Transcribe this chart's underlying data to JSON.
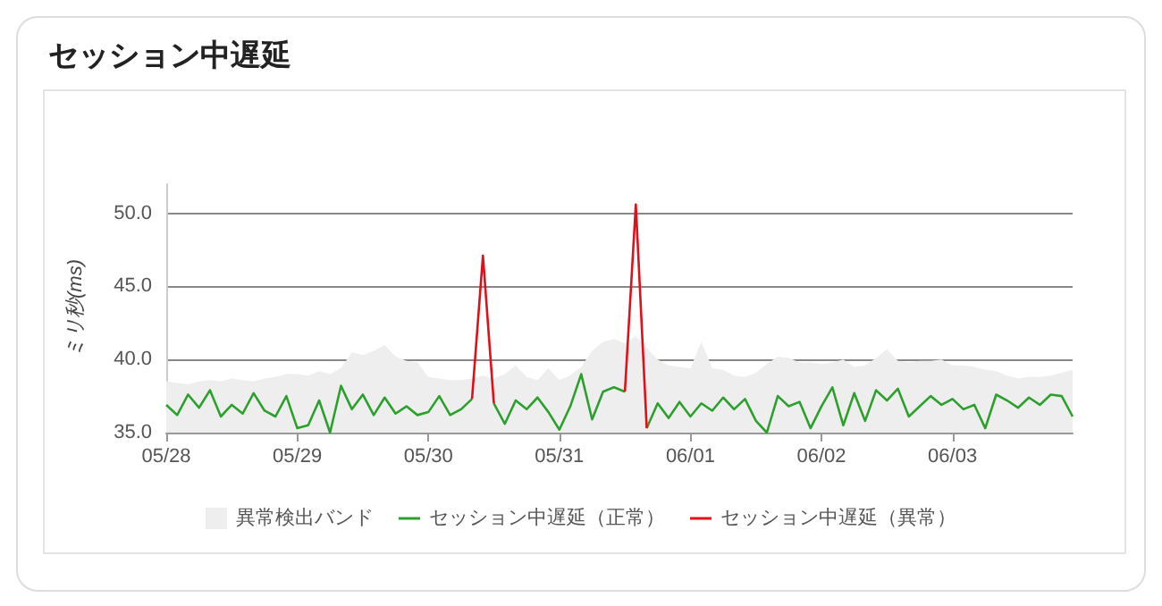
{
  "chart_data": {
    "type": "line",
    "title": "セッション中遅延",
    "ylabel": "ミリ秒(ms)",
    "x": [
      "--05-28T00:00",
      "--05-28T02:00",
      "--05-28T04:00",
      "--05-28T06:00",
      "--05-28T08:00",
      "--05-28T10:00",
      "--05-28T12:00",
      "--05-28T14:00",
      "--05-28T16:00",
      "--05-28T18:00",
      "--05-28T20:00",
      "--05-28T22:00",
      "--05-29T00:00",
      "--05-29T02:00",
      "--05-29T04:00",
      "--05-29T06:00",
      "--05-29T08:00",
      "--05-29T10:00",
      "--05-29T12:00",
      "--05-29T14:00",
      "--05-29T16:00",
      "--05-29T18:00",
      "--05-29T20:00",
      "--05-29T22:00",
      "--05-30T00:00",
      "--05-30T02:00",
      "--05-30T04:00",
      "--05-30T06:00",
      "--05-30T08:00",
      "--05-30T10:00",
      "--05-30T12:00",
      "--05-30T14:00",
      "--05-30T16:00",
      "--05-30T18:00",
      "--05-30T20:00",
      "--05-30T22:00",
      "--05-31T00:00",
      "--05-31T02:00",
      "--05-31T04:00",
      "--05-31T06:00",
      "--05-31T08:00",
      "--05-31T10:00",
      "--05-31T12:00",
      "--05-31T14:00",
      "--05-31T16:00",
      "--05-31T18:00",
      "--05-31T20:00",
      "--05-31T22:00",
      "--06-01T00:00",
      "--06-01T02:00",
      "--06-01T04:00",
      "--06-01T06:00",
      "--06-01T08:00",
      "--06-01T10:00",
      "--06-01T12:00",
      "--06-01T14:00",
      "--06-01T16:00",
      "--06-01T18:00",
      "--06-01T20:00",
      "--06-01T22:00",
      "--06-02T00:00",
      "--06-02T02:00",
      "--06-02T04:00",
      "--06-02T06:00",
      "--06-02T08:00",
      "--06-02T10:00",
      "--06-02T12:00",
      "--06-02T14:00",
      "--06-02T16:00",
      "--06-02T18:00",
      "--06-02T20:00",
      "--06-02T22:00",
      "--06-03T00:00",
      "--06-03T02:00",
      "--06-03T04:00",
      "--06-03T06:00",
      "--06-03T08:00",
      "--06-03T10:00",
      "--06-03T12:00",
      "--06-03T14:00",
      "--06-03T16:00",
      "--06-03T18:00",
      "--06-03T20:00",
      "--06-03T22:00"
    ],
    "xlim": [
      "--05-28T00:00",
      "--06-03T22:00"
    ],
    "xticks": [
      {
        "value": "--05-28",
        "label": "05/28"
      },
      {
        "value": "--05-29",
        "label": "05/29"
      },
      {
        "value": "--05-30",
        "label": "05/30"
      },
      {
        "value": "--05-31",
        "label": "05/31"
      },
      {
        "value": "--06-01",
        "label": "06/01"
      },
      {
        "value": "--06-02",
        "label": "06/02"
      },
      {
        "value": "--06-03",
        "label": "06/03"
      }
    ],
    "ylim": [
      35,
      52
    ],
    "yticks": [
      {
        "value": 35,
        "label": "35.0"
      },
      {
        "value": 40,
        "label": "40.0"
      },
      {
        "value": 45,
        "label": "45.0"
      },
      {
        "value": 50,
        "label": "50.0"
      }
    ],
    "grid": "y",
    "legend": "bottom",
    "marker": "none",
    "line_style": "solid",
    "series": [
      {
        "name": "異常検出バンド",
        "type": "area",
        "color": "#eeeeee",
        "values": [
          38.5,
          38.4,
          38.3,
          38.5,
          38.6,
          38.5,
          38.7,
          38.6,
          38.5,
          38.7,
          38.8,
          39.0,
          39.0,
          38.9,
          39.2,
          39.0,
          39.4,
          40.5,
          40.3,
          40.6,
          41.0,
          40.2,
          39.9,
          39.8,
          38.8,
          38.7,
          38.6,
          38.6,
          38.7,
          38.9,
          38.7,
          39.0,
          39.6,
          38.8,
          38.6,
          39.4,
          38.6,
          38.9,
          39.5,
          40.6,
          41.2,
          41.4,
          41.1,
          41.6,
          40.8,
          40.0,
          39.6,
          39.5,
          39.4,
          41.2,
          39.4,
          39.3,
          38.9,
          38.8,
          39.1,
          39.7,
          40.2,
          40.1,
          39.8,
          39.8,
          39.7,
          39.8,
          40.0,
          39.5,
          39.6,
          40.1,
          40.7,
          39.9,
          39.8,
          39.9,
          39.9,
          40.0,
          39.6,
          39.6,
          39.5,
          39.3,
          39.2,
          38.9,
          38.7,
          38.8,
          38.8,
          38.9,
          39.1,
          39.3
        ]
      },
      {
        "name": "セッション中遅延（正常）",
        "color": "#2ca02c",
        "values": [
          36.9,
          36.2,
          37.6,
          36.7,
          37.9,
          36.1,
          36.9,
          36.3,
          37.7,
          36.5,
          36.1,
          37.5,
          35.3,
          35.5,
          37.2,
          35.0,
          38.2,
          36.6,
          37.6,
          36.2,
          37.4,
          36.3,
          36.8,
          36.2,
          36.4,
          37.5,
          36.2,
          36.6,
          37.3,
          null,
          37.0,
          35.6,
          37.2,
          36.6,
          37.4,
          36.4,
          35.2,
          36.8,
          39.0,
          35.9,
          37.8,
          38.1,
          37.8,
          null,
          35.3,
          37.0,
          36.0,
          37.1,
          36.1,
          37.0,
          36.5,
          37.4,
          36.6,
          37.3,
          35.8,
          35.0,
          37.5,
          36.8,
          37.1,
          35.3,
          36.8,
          38.1,
          35.5,
          37.7,
          35.8,
          37.9,
          37.2,
          38.0,
          36.1,
          36.8,
          37.5,
          36.9,
          37.3,
          36.6,
          36.9,
          35.3,
          37.6,
          37.2,
          36.7,
          37.4,
          36.9,
          37.6,
          37.5,
          36.1
        ]
      },
      {
        "name": "セッション中遅延（異常）",
        "color": "#e0101a",
        "values": [
          null,
          null,
          null,
          null,
          null,
          null,
          null,
          null,
          null,
          null,
          null,
          null,
          null,
          null,
          null,
          null,
          null,
          null,
          null,
          null,
          null,
          null,
          null,
          null,
          null,
          null,
          null,
          null,
          37.3,
          47.1,
          37.0,
          null,
          null,
          null,
          null,
          null,
          null,
          null,
          null,
          null,
          null,
          null,
          37.8,
          50.6,
          35.3,
          null,
          null,
          null,
          null,
          null,
          null,
          null,
          null,
          null,
          null,
          null,
          null,
          null,
          null,
          null,
          null,
          null,
          null,
          null,
          null,
          null,
          null,
          null,
          null,
          null,
          null,
          null,
          null,
          null,
          null,
          null,
          null,
          null,
          null,
          null,
          null,
          null,
          null,
          null
        ]
      }
    ]
  }
}
